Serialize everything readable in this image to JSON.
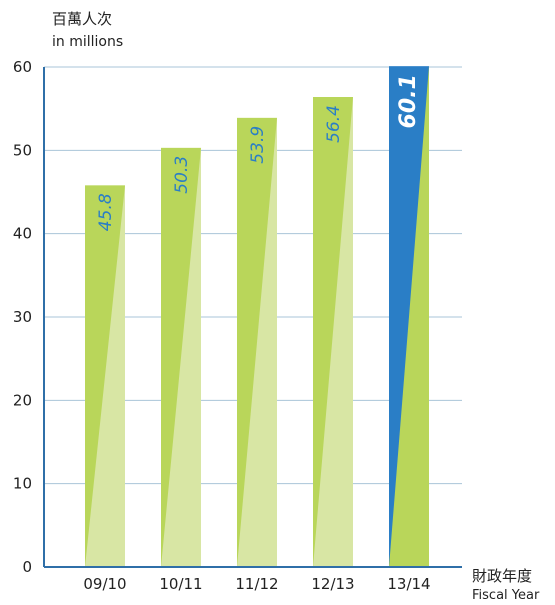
{
  "chart_data": {
    "type": "bar",
    "ylabel_cn": "百萬人次",
    "ylabel_en": "in millions",
    "xlabel_cn": "財政年度",
    "xlabel_en": "Fiscal Year",
    "categories": [
      "09/10",
      "10/11",
      "11/12",
      "12/13",
      "13/14"
    ],
    "values": [
      45.8,
      50.3,
      53.9,
      56.4,
      60.1
    ],
    "value_labels": [
      "45.8",
      "50.3",
      "53.9",
      "56.4",
      "60.1"
    ],
    "highlight_index": 4,
    "ylim": [
      0,
      60
    ],
    "yticks": [
      0,
      10,
      20,
      30,
      40,
      50,
      60
    ],
    "grid": true,
    "colors": {
      "bar": "#b9d65a",
      "bar_light": "#d8e6a4",
      "highlight": "#2a7ec6",
      "label": "#2a7ec6",
      "highlight_label": "#ffffff",
      "grid": "#a9c4d8",
      "axis": "#2f6fa8"
    }
  }
}
